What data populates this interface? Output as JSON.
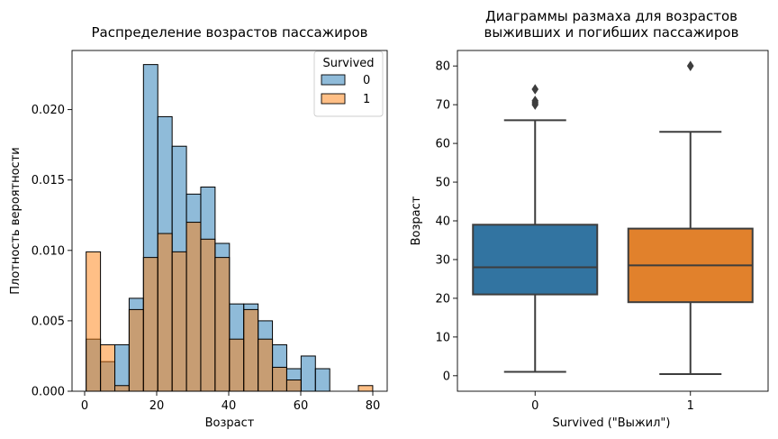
{
  "chart_data": [
    {
      "type": "histogram",
      "title": "Распределение возрастов пассажиров",
      "xlabel": "Возраст",
      "ylabel": "Плотность вероятности",
      "xlim": [
        -3.5,
        84
      ],
      "ylim": [
        0,
        0.0242
      ],
      "xticks": [
        0,
        20,
        40,
        60,
        80
      ],
      "yticks": [
        0.0,
        0.005,
        0.01,
        0.015,
        0.02
      ],
      "ytick_labels": [
        "0.000",
        "0.005",
        "0.010",
        "0.015",
        "0.020"
      ],
      "bin_edges": [
        0.42,
        4.4,
        8.38,
        12.35,
        16.33,
        20.31,
        24.29,
        28.27,
        32.24,
        36.22,
        40.2,
        44.18,
        48.16,
        52.14,
        56.11,
        60.09,
        64.07,
        68.05,
        72.03,
        76.0,
        79.98
      ],
      "legend": {
        "title": "Survived",
        "placement": "top-right"
      },
      "series": [
        {
          "name": "0",
          "color": "#1f77b4",
          "values": [
            0.0037,
            0.0021,
            0.0033,
            0.0066,
            0.0232,
            0.0195,
            0.0174,
            0.014,
            0.0145,
            0.0105,
            0.0062,
            0.0062,
            0.005,
            0.0033,
            0.0016,
            0.0025,
            0.0016,
            0.0,
            0.0,
            0.0
          ]
        },
        {
          "name": "1",
          "color": "#ff7f0e",
          "values": [
            0.0099,
            0.0033,
            0.0004,
            0.0058,
            0.0095,
            0.0112,
            0.0099,
            0.012,
            0.0108,
            0.0095,
            0.0037,
            0.0058,
            0.0037,
            0.0017,
            0.0008,
            0.0,
            0.0,
            0.0,
            0.0,
            0.0004
          ]
        }
      ]
    },
    {
      "type": "box",
      "title_line1": "Диаграммы размаха для возрастов",
      "title_line2": "выживших и погибших пассажиров",
      "xlabel": "Survived (\"Выжил\")",
      "ylabel": "Возраст",
      "ylim": [
        -4,
        84
      ],
      "yticks": [
        0,
        10,
        20,
        30,
        40,
        50,
        60,
        70,
        80
      ],
      "categories": [
        "0",
        "1"
      ],
      "boxes": [
        {
          "category": "0",
          "color": "#3274a1",
          "whisker_low": 1,
          "q1": 21,
          "median": 28,
          "q3": 39,
          "whisker_high": 66,
          "outliers": [
            74,
            71,
            70.5,
            70
          ]
        },
        {
          "category": "1",
          "color": "#e1812c",
          "whisker_low": 0.42,
          "q1": 19,
          "median": 28.5,
          "q3": 38,
          "whisker_high": 63,
          "outliers": [
            80
          ]
        }
      ]
    }
  ]
}
